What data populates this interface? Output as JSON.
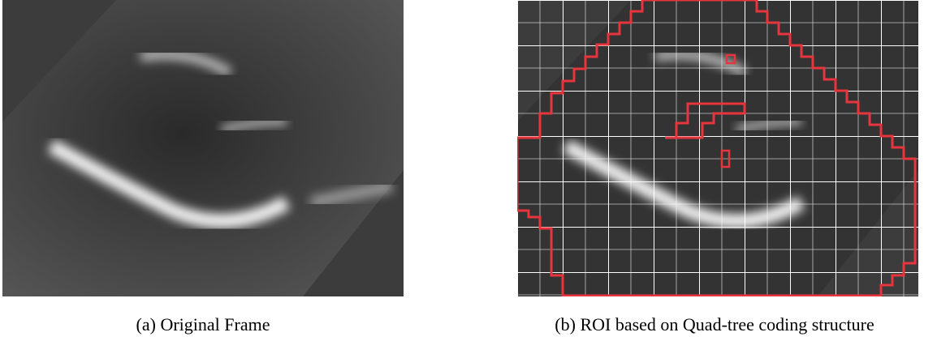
{
  "figure": {
    "panels": [
      {
        "caption": "(a) Original Frame"
      },
      {
        "caption": "(b) ROI based on Quad-tree coding structure"
      }
    ]
  }
}
